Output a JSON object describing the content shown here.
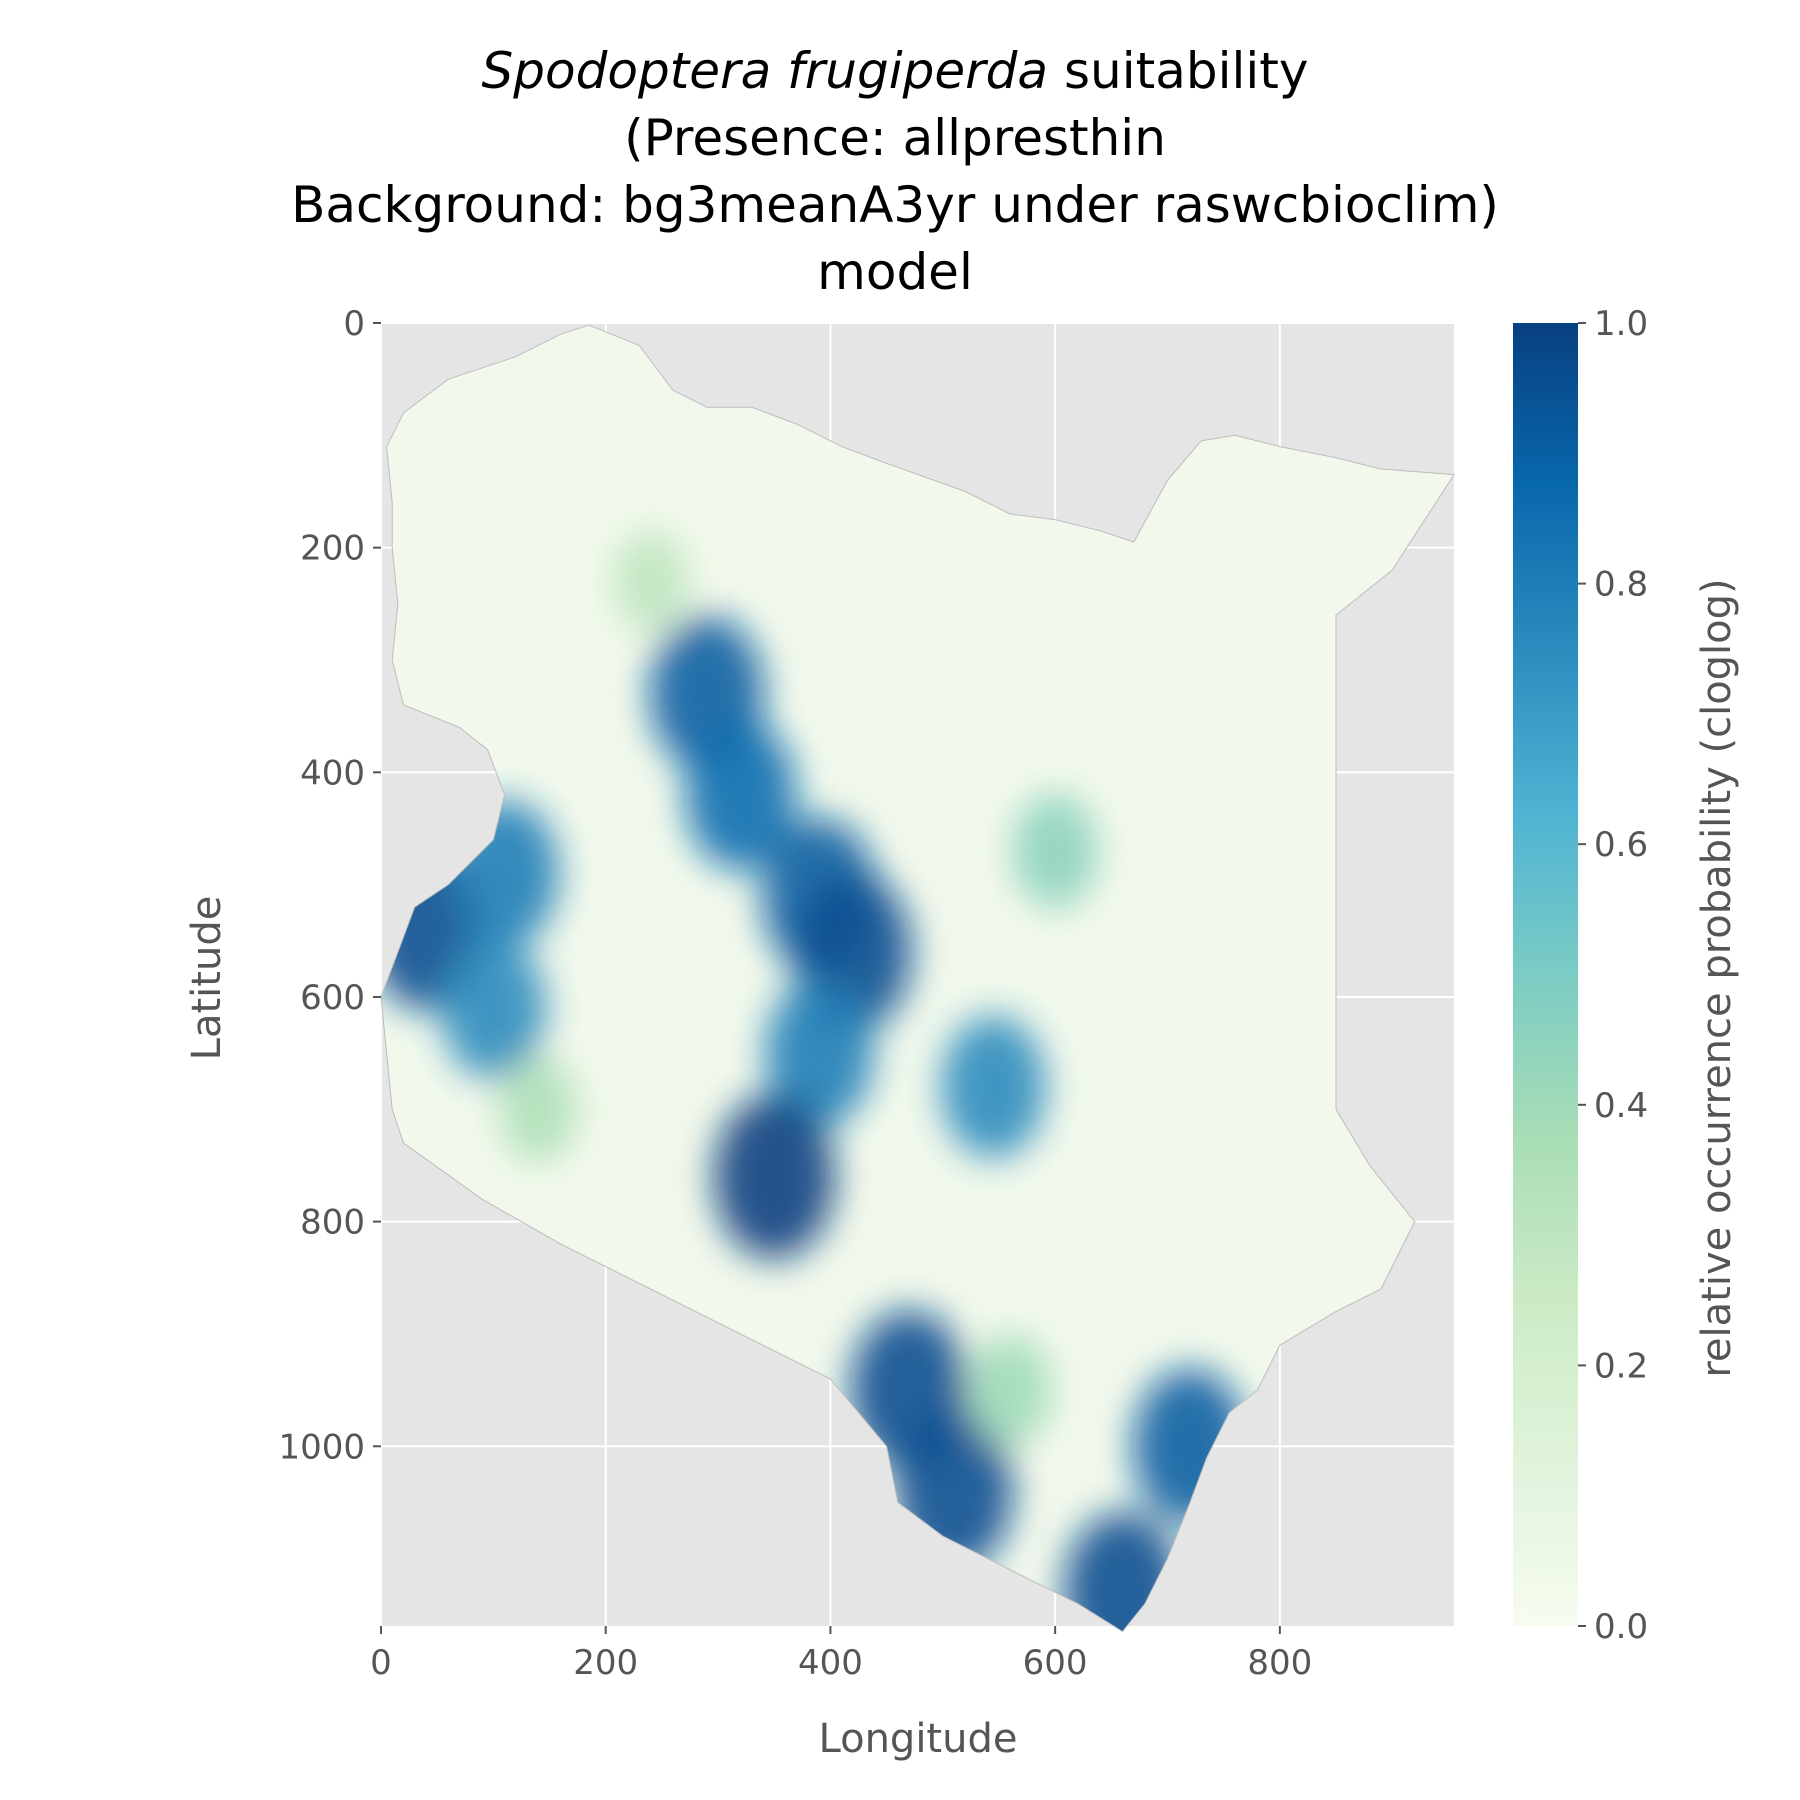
{
  "chart_data": {
    "type": "heatmap",
    "title": {
      "line1_italic": "Spodoptera frugiperda",
      "line1_rest": " suitability",
      "line2": "(Presence: allpresthin",
      "line3": "Background: bg3meanA3yr under raswcbioclim)",
      "line4": "model"
    },
    "xlabel": "Longitude",
    "ylabel": "Latitude",
    "xlim": [
      0,
      955
    ],
    "ylim": [
      1160,
      0
    ],
    "y_inverted": true,
    "x_ticks": [
      0,
      200,
      400,
      600,
      800
    ],
    "x_tick_labels": [
      "0",
      "200",
      "400",
      "600",
      "800"
    ],
    "y_ticks": [
      0,
      200,
      400,
      600,
      800,
      1000
    ],
    "y_tick_labels": [
      "0",
      "200",
      "400",
      "600",
      "800",
      "1000"
    ],
    "grid": true,
    "colorbar": {
      "label": "relative occurrence probability (cloglog)",
      "range": [
        0,
        1
      ],
      "ticks": [
        0.0,
        0.2,
        0.4,
        0.6,
        0.8,
        1.0
      ],
      "tick_labels": [
        "0.0",
        "0.2",
        "0.4",
        "0.6",
        "0.8",
        "1.0"
      ],
      "colormap": "GnBu",
      "colors": [
        "#f7fcf0",
        "#e0f3db",
        "#ccebc5",
        "#a8ddb5",
        "#7bccc4",
        "#4eb3d3",
        "#2b8cbe",
        "#0868ac",
        "#084081"
      ]
    },
    "colors": {
      "panel_background": "#e5e5e5",
      "grid": "#ffffff",
      "land_base": "#f2f9ec"
    },
    "hotspots": [
      {
        "x": 290,
        "y": 330,
        "value": 0.9
      },
      {
        "x": 320,
        "y": 420,
        "value": 0.85
      },
      {
        "x": 40,
        "y": 540,
        "value": 0.95
      },
      {
        "x": 110,
        "y": 490,
        "value": 0.8
      },
      {
        "x": 100,
        "y": 610,
        "value": 0.75
      },
      {
        "x": 390,
        "y": 510,
        "value": 0.9
      },
      {
        "x": 420,
        "y": 560,
        "value": 0.95
      },
      {
        "x": 390,
        "y": 650,
        "value": 0.8
      },
      {
        "x": 350,
        "y": 760,
        "value": 1.0
      },
      {
        "x": 545,
        "y": 680,
        "value": 0.75
      },
      {
        "x": 600,
        "y": 470,
        "value": 0.45
      },
      {
        "x": 470,
        "y": 950,
        "value": 0.95
      },
      {
        "x": 510,
        "y": 1040,
        "value": 0.95
      },
      {
        "x": 720,
        "y": 1000,
        "value": 0.9
      },
      {
        "x": 660,
        "y": 1130,
        "value": 0.95
      },
      {
        "x": 240,
        "y": 230,
        "value": 0.3
      },
      {
        "x": 140,
        "y": 700,
        "value": 0.35
      },
      {
        "x": 560,
        "y": 950,
        "value": 0.4
      }
    ]
  }
}
